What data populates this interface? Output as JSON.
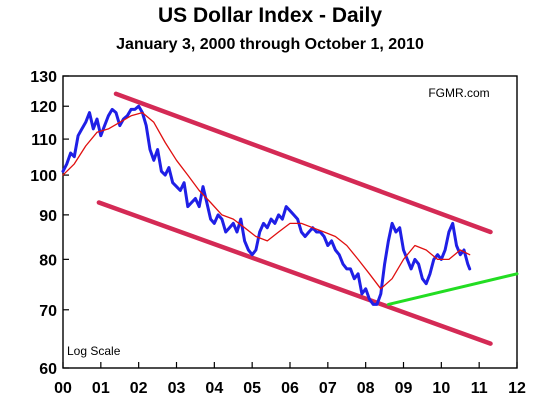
{
  "title": "US Dollar Index - Daily",
  "subtitle": "January 3, 2000 through October 1,  2010",
  "source_label": "FGMR.com",
  "scale_label": "Log Scale",
  "colors": {
    "index": "#1f1fe6",
    "moving_average": "#e01010",
    "channel": "#d42a55",
    "support": "#22dd22"
  },
  "chart_data": {
    "type": "line",
    "title": "US Dollar Index - Daily",
    "subtitle": "January 3, 2000 through October 1,  2010",
    "xlabel": "",
    "ylabel": "",
    "log_scale_y": true,
    "xlim": [
      0,
      12
    ],
    "ylim": [
      60,
      130
    ],
    "x_ticks": [
      "00",
      "01",
      "02",
      "03",
      "04",
      "05",
      "06",
      "07",
      "08",
      "09",
      "10",
      "11",
      "12"
    ],
    "y_ticks": [
      60,
      70,
      80,
      90,
      100,
      110,
      120,
      130
    ],
    "grid": false,
    "legend": "none",
    "series": [
      {
        "role": "index",
        "x": [
          0.0,
          0.1,
          0.2,
          0.3,
          0.4,
          0.5,
          0.6,
          0.7,
          0.8,
          0.9,
          1.0,
          1.1,
          1.2,
          1.3,
          1.4,
          1.5,
          1.6,
          1.7,
          1.8,
          1.9,
          2.0,
          2.1,
          2.2,
          2.3,
          2.4,
          2.5,
          2.6,
          2.7,
          2.8,
          2.9,
          3.0,
          3.1,
          3.2,
          3.3,
          3.4,
          3.5,
          3.6,
          3.7,
          3.8,
          3.9,
          4.0,
          4.1,
          4.2,
          4.3,
          4.4,
          4.5,
          4.6,
          4.7,
          4.8,
          4.9,
          5.0,
          5.1,
          5.2,
          5.3,
          5.4,
          5.5,
          5.6,
          5.7,
          5.8,
          5.9,
          6.0,
          6.1,
          6.2,
          6.3,
          6.4,
          6.5,
          6.6,
          6.7,
          6.8,
          6.9,
          7.0,
          7.1,
          7.2,
          7.3,
          7.4,
          7.5,
          7.6,
          7.7,
          7.8,
          7.9,
          8.0,
          8.1,
          8.2,
          8.3,
          8.4,
          8.5,
          8.6,
          8.7,
          8.8,
          8.9,
          9.0,
          9.1,
          9.2,
          9.3,
          9.4,
          9.5,
          9.6,
          9.7,
          9.8,
          9.9,
          10.0,
          10.1,
          10.2,
          10.3,
          10.4,
          10.5,
          10.6,
          10.7,
          10.75
        ],
        "values": [
          101,
          103,
          106,
          105,
          111,
          113,
          115,
          118,
          113,
          116,
          111,
          114,
          117,
          119,
          118,
          114,
          116,
          117,
          119,
          119,
          120,
          118,
          114,
          107,
          104,
          107,
          101,
          100,
          102,
          98,
          97,
          96,
          98,
          92,
          93,
          94,
          92,
          97,
          93,
          89,
          88,
          90,
          89,
          86,
          87,
          88,
          86,
          89,
          84,
          82,
          81,
          82,
          86,
          88,
          87,
          89,
          88,
          90,
          89,
          92,
          91,
          90,
          89,
          86,
          85,
          86,
          87,
          86,
          86,
          85,
          83,
          84,
          82,
          81,
          79,
          78,
          78,
          76,
          77,
          73,
          74,
          72,
          71,
          71,
          73,
          79,
          84,
          88,
          86,
          87,
          82,
          80,
          78,
          80,
          79,
          76,
          75,
          77,
          80,
          81,
          80,
          82,
          86,
          88,
          83,
          81,
          82,
          79,
          78
        ]
      },
      {
        "role": "moving_average",
        "x": [
          0.0,
          0.3,
          0.6,
          0.9,
          1.2,
          1.5,
          1.8,
          2.1,
          2.4,
          2.7,
          3.0,
          3.3,
          3.6,
          3.9,
          4.2,
          4.5,
          4.8,
          5.1,
          5.4,
          5.7,
          6.0,
          6.3,
          6.6,
          6.9,
          7.2,
          7.5,
          7.8,
          8.1,
          8.4,
          8.7,
          9.0,
          9.3,
          9.6,
          9.9,
          10.2,
          10.5,
          10.75
        ],
        "values": [
          100,
          103,
          108,
          112,
          113,
          115,
          117,
          118,
          115,
          109,
          104,
          100,
          96,
          93,
          90,
          89,
          87,
          85,
          84,
          86,
          88,
          88,
          87,
          86,
          85,
          83,
          80,
          77,
          74,
          76,
          80,
          83,
          82,
          80,
          80,
          82,
          81
        ]
      },
      {
        "role": "upper_channel",
        "x": [
          1.4,
          11.3
        ],
        "values": [
          124,
          86
        ]
      },
      {
        "role": "lower_channel",
        "x": [
          0.95,
          11.3
        ],
        "values": [
          93,
          64
        ]
      },
      {
        "role": "support",
        "x": [
          8.6,
          12.0
        ],
        "values": [
          71,
          77
        ]
      }
    ]
  }
}
